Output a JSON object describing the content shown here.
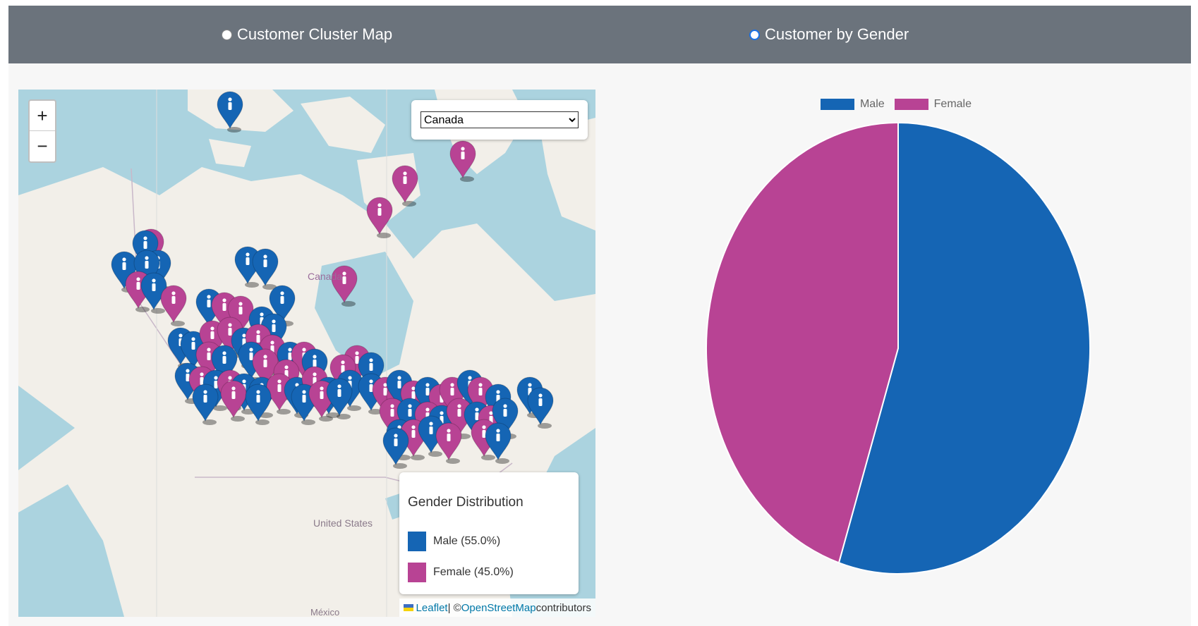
{
  "tabs": [
    {
      "label": "Customer Cluster Map",
      "checked": false
    },
    {
      "label": "Customer by Gender",
      "checked": true
    }
  ],
  "map": {
    "zoom_in": "+",
    "zoom_out": "−",
    "country_select": {
      "selected": "Canada"
    },
    "place_labels": {
      "canada": "Canada",
      "united_states": "United States",
      "mexico": "México"
    },
    "legend": {
      "title": "Gender Distribution",
      "items": [
        {
          "label": "Male (55.0%)",
          "color": "#1565b4"
        },
        {
          "label": "Female (45.0%)",
          "color": "#b84394"
        }
      ]
    },
    "attribution": {
      "leaflet": "Leaflet",
      "separator": " | © ",
      "osm": "OpenStreetMap",
      "suffix": " contributors"
    },
    "marker_colors": {
      "male": "#1565b4",
      "female": "#b84394"
    }
  },
  "chart_data": {
    "type": "pie",
    "categories": [
      "Male",
      "Female"
    ],
    "values": [
      55.0,
      45.0
    ],
    "colors": [
      "#1565b4",
      "#b84394"
    ],
    "title": "",
    "legend_position": "top"
  }
}
